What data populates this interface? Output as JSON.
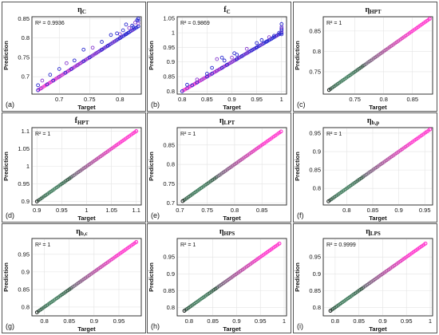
{
  "figure": {
    "xlabel": "Target",
    "ylabel": "Prediction",
    "point_colors": {
      "outlier": "#2a2ad0",
      "outlier_alt": "#8a3fd0",
      "line": "#ff33cc",
      "line_mid": "#3c7a5a",
      "line_dark": "#2a2a2a"
    }
  },
  "chart_data": [
    {
      "type": "scatter",
      "panel_label": "(a)",
      "title": "η",
      "title_sub": "C",
      "r2": "R² = 0.9936",
      "xlim": [
        0.655,
        0.835
      ],
      "ylim": [
        0.655,
        0.855
      ],
      "xticks": [
        "0.7",
        "0.75",
        "0.8"
      ],
      "yticks": [
        "0.7",
        "0.75",
        "0.8",
        "0.85"
      ],
      "x": [
        0.665,
        0.67,
        0.68,
        0.69,
        0.7,
        0.71,
        0.72,
        0.73,
        0.74,
        0.75,
        0.76,
        0.77,
        0.78,
        0.79,
        0.8,
        0.81,
        0.82,
        0.83,
        0.665,
        0.672,
        0.685,
        0.7,
        0.712,
        0.725,
        0.74,
        0.755,
        0.77,
        0.785,
        0.8,
        0.81,
        0.82,
        0.825,
        0.83,
        0.83,
        0.83,
        0.828,
        0.822,
        0.815,
        0.805,
        0.795
      ],
      "y": [
        0.665,
        0.67,
        0.68,
        0.69,
        0.7,
        0.71,
        0.72,
        0.73,
        0.74,
        0.75,
        0.76,
        0.77,
        0.78,
        0.79,
        0.8,
        0.81,
        0.82,
        0.83,
        0.678,
        0.69,
        0.705,
        0.72,
        0.735,
        0.742,
        0.77,
        0.775,
        0.79,
        0.808,
        0.81,
        0.835,
        0.832,
        0.84,
        0.85,
        0.845,
        0.838,
        0.846,
        0.828,
        0.826,
        0.82,
        0.812
      ]
    },
    {
      "type": "scatter",
      "panel_label": "(b)",
      "title": "f",
      "title_sub": "C",
      "r2": "R² = 0.9869",
      "xlim": [
        0.79,
        1.01
      ],
      "ylim": [
        0.79,
        1.055
      ],
      "xticks": [
        "0.8",
        "0.85",
        "0.9",
        "0.95",
        "1"
      ],
      "yticks": [
        "0.8",
        "0.85",
        "0.9",
        "0.95",
        "1",
        "1.05"
      ],
      "x": [
        0.8,
        0.81,
        0.82,
        0.83,
        0.84,
        0.85,
        0.86,
        0.87,
        0.88,
        0.89,
        0.9,
        0.91,
        0.92,
        0.93,
        0.94,
        0.95,
        0.96,
        0.97,
        0.98,
        0.99,
        1.0,
        0.81,
        0.83,
        0.85,
        0.86,
        0.87,
        0.88,
        0.885,
        0.9,
        0.905,
        0.91,
        0.93,
        0.95,
        0.96,
        0.975,
        0.985,
        0.995,
        1.0,
        1.0,
        1.0,
        1.0,
        1.0,
        1.0
      ],
      "y": [
        0.8,
        0.81,
        0.82,
        0.83,
        0.84,
        0.85,
        0.86,
        0.87,
        0.88,
        0.89,
        0.9,
        0.91,
        0.92,
        0.93,
        0.94,
        0.95,
        0.96,
        0.97,
        0.98,
        0.99,
        1.0,
        0.822,
        0.84,
        0.86,
        0.88,
        0.91,
        0.915,
        0.905,
        0.915,
        0.93,
        0.925,
        0.945,
        0.965,
        0.975,
        0.985,
        0.99,
        1.0,
        1.005,
        1.01,
        1.015,
        1.02,
        1.03,
        0.995
      ]
    },
    {
      "type": "scatter",
      "panel_label": "(c)",
      "title": "η",
      "title_sub": "HPT",
      "r2": "R² = 1",
      "xlim": [
        0.695,
        0.885
      ],
      "ylim": [
        0.695,
        0.885
      ],
      "xticks": [
        "0.75",
        "0.8",
        "0.85"
      ],
      "yticks": [
        "0.75",
        "0.8",
        "0.85"
      ],
      "x": [
        0.705,
        0.88
      ],
      "y": [
        0.705,
        0.88
      ]
    },
    {
      "type": "scatter",
      "panel_label": "(d)",
      "title": "f",
      "title_sub": "HPT",
      "r2": "R² = 1",
      "xlim": [
        0.89,
        1.11
      ],
      "ylim": [
        0.89,
        1.11
      ],
      "xticks": [
        "0.9",
        "0.95",
        "1",
        "1.05",
        "1.1"
      ],
      "yticks": [
        "0.9",
        "0.95",
        "1",
        "1.05",
        "1.1"
      ],
      "x": [
        0.9,
        1.1
      ],
      "y": [
        0.9,
        1.1
      ]
    },
    {
      "type": "scatter",
      "panel_label": "(e)",
      "title": "η",
      "title_sub": "LPT",
      "r2": "R² = 1",
      "xlim": [
        0.695,
        0.895
      ],
      "ylim": [
        0.695,
        0.895
      ],
      "xticks": [
        "0.7",
        "0.75",
        "0.8",
        "0.85"
      ],
      "yticks": [
        "0.7",
        "0.75",
        "0.8",
        "0.85"
      ],
      "x": [
        0.705,
        0.885
      ],
      "y": [
        0.705,
        0.885
      ]
    },
    {
      "type": "scatter",
      "panel_label": "(f)",
      "title": "η",
      "title_sub": "b,p",
      "r2": "R² = 1",
      "xlim": [
        0.755,
        0.965
      ],
      "ylim": [
        0.755,
        0.965
      ],
      "xticks": [
        "0.8",
        "0.85",
        "0.9",
        "0.95"
      ],
      "yticks": [
        "0.8",
        "0.85",
        "0.9",
        "0.95"
      ],
      "x": [
        0.765,
        0.96
      ],
      "y": [
        0.765,
        0.96
      ]
    },
    {
      "type": "scatter",
      "panel_label": "(g)",
      "title": "η",
      "title_sub": "b,c",
      "r2": "R² = 1",
      "xlim": [
        0.775,
        0.995
      ],
      "ylim": [
        0.775,
        0.995
      ],
      "xticks": [
        "0.8",
        "0.85",
        "0.9",
        "0.95"
      ],
      "yticks": [
        "0.8",
        "0.85",
        "0.9",
        "0.95"
      ],
      "x": [
        0.785,
        0.985
      ],
      "y": [
        0.785,
        0.985
      ]
    },
    {
      "type": "scatter",
      "panel_label": "(h)",
      "title": "η",
      "title_sub": "HPS",
      "r2": "R² = 1",
      "xlim": [
        0.775,
        1.005
      ],
      "ylim": [
        0.775,
        1.005
      ],
      "xticks": [
        "0.8",
        "0.85",
        "0.9",
        "0.95",
        "1"
      ],
      "yticks": [
        "0.8",
        "0.85",
        "0.9",
        "0.95"
      ],
      "x": [
        0.79,
        0.99
      ],
      "y": [
        0.79,
        0.99
      ]
    },
    {
      "type": "scatter",
      "panel_label": "(i)",
      "title": "η",
      "title_sub": "LPS",
      "r2": "R² = 0.9999",
      "xlim": [
        0.775,
        1.005
      ],
      "ylim": [
        0.775,
        1.005
      ],
      "xticks": [
        "0.8",
        "0.85",
        "0.9",
        "0.95",
        "1"
      ],
      "yticks": [
        "0.8",
        "0.85",
        "0.9",
        "0.95"
      ],
      "x": [
        0.79,
        0.99
      ],
      "y": [
        0.79,
        0.99
      ]
    }
  ]
}
